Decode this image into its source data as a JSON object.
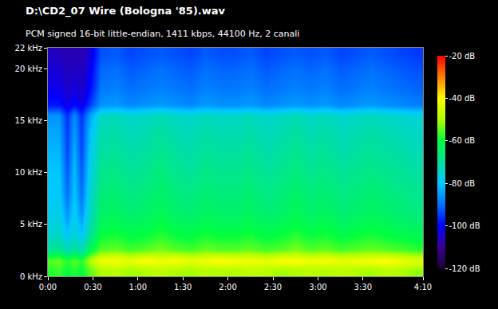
{
  "chart_data": {
    "type": "heatmap",
    "title": "D:\\CD2_07 Wire (Bologna '85).wav",
    "subtitle": "PCM signed 16-bit little-endian, 1411 kbps, 44100 Hz, 2 canali",
    "x": [
      2.5,
      7.5,
      12.5,
      17.5,
      22.5,
      27.5,
      35,
      45,
      55,
      65,
      75,
      85,
      95,
      105,
      115,
      125,
      135,
      145,
      155,
      165,
      175,
      185,
      195,
      205,
      215,
      225,
      235,
      245
    ],
    "y": [
      0.5,
      1.5,
      2.5,
      4,
      6,
      8,
      10,
      12,
      14,
      15.5,
      16.5,
      18,
      20,
      21.5
    ],
    "z": [
      [
        -58,
        -57,
        -60,
        -58,
        -60,
        -55,
        -50,
        -49,
        -51,
        -50,
        -48,
        -50,
        -51,
        -49,
        -50,
        -50,
        -48,
        -49,
        -51,
        -50,
        -49,
        -50,
        -48,
        -50,
        -51,
        -49,
        -50,
        -52
      ],
      [
        -55,
        -54,
        -58,
        -55,
        -58,
        -50,
        -42,
        -41,
        -43,
        -40,
        -42,
        -41,
        -43,
        -42,
        -40,
        -41,
        -42,
        -43,
        -41,
        -40,
        -42,
        -41,
        -43,
        -42,
        -41,
        -40,
        -42,
        -44
      ],
      [
        -68,
        -67,
        -72,
        -68,
        -72,
        -62,
        -55,
        -54,
        -56,
        -55,
        -53,
        -55,
        -56,
        -54,
        -55,
        -55,
        -54,
        -56,
        -55,
        -53,
        -55,
        -54,
        -56,
        -55,
        -54,
        -55,
        -56,
        -57
      ],
      [
        -75,
        -74,
        -80,
        -75,
        -80,
        -70,
        -60,
        -59,
        -61,
        -60,
        -58,
        -60,
        -61,
        -59,
        -60,
        -60,
        -59,
        -61,
        -60,
        -58,
        -60,
        -59,
        -61,
        -60,
        -59,
        -60,
        -61,
        -62
      ],
      [
        -78,
        -77,
        -86,
        -78,
        -86,
        -74,
        -64,
        -63,
        -65,
        -64,
        -62,
        -64,
        -65,
        -63,
        -64,
        -64,
        -63,
        -65,
        -64,
        -62,
        -64,
        -63,
        -65,
        -64,
        -63,
        -64,
        -65,
        -66
      ],
      [
        -80,
        -79,
        -90,
        -80,
        -90,
        -76,
        -66,
        -65,
        -67,
        -66,
        -64,
        -66,
        -67,
        -65,
        -66,
        -66,
        -65,
        -67,
        -66,
        -64,
        -66,
        -65,
        -67,
        -66,
        -65,
        -66,
        -67,
        -68
      ],
      [
        -80,
        -80,
        -92,
        -81,
        -92,
        -78,
        -68,
        -67,
        -69,
        -68,
        -66,
        -68,
        -69,
        -67,
        -68,
        -68,
        -67,
        -69,
        -68,
        -66,
        -68,
        -67,
        -69,
        -68,
        -67,
        -68,
        -69,
        -70
      ],
      [
        -82,
        -82,
        -94,
        -83,
        -94,
        -80,
        -70,
        -69,
        -71,
        -70,
        -68,
        -70,
        -71,
        -69,
        -70,
        -70,
        -69,
        -71,
        -70,
        -68,
        -70,
        -69,
        -71,
        -70,
        -69,
        -70,
        -71,
        -72
      ],
      [
        -84,
        -84,
        -95,
        -85,
        -95,
        -82,
        -72,
        -71,
        -73,
        -72,
        -70,
        -72,
        -73,
        -71,
        -72,
        -72,
        -71,
        -73,
        -72,
        -70,
        -72,
        -71,
        -73,
        -72,
        -71,
        -72,
        -73,
        -74
      ],
      [
        -86,
        -86,
        -96,
        -87,
        -96,
        -85,
        -74,
        -73,
        -75,
        -74,
        -72,
        -74,
        -75,
        -73,
        -74,
        -74,
        -73,
        -75,
        -74,
        -72,
        -74,
        -73,
        -75,
        -74,
        -73,
        -74,
        -75,
        -76
      ],
      [
        -98,
        -98,
        -102,
        -99,
        -102,
        -95,
        -86,
        -85,
        -87,
        -86,
        -85,
        -86,
        -87,
        -85,
        -86,
        -86,
        -85,
        -87,
        -86,
        -85,
        -86,
        -85,
        -87,
        -86,
        -85,
        -86,
        -87,
        -88
      ],
      [
        -102,
        -102,
        -105,
        -103,
        -105,
        -100,
        -89,
        -88,
        -90,
        -89,
        -88,
        -89,
        -90,
        -88,
        -89,
        -89,
        -88,
        -90,
        -89,
        -88,
        -89,
        -88,
        -90,
        -89,
        -88,
        -89,
        -90,
        -91
      ],
      [
        -104,
        -104,
        -106,
        -105,
        -106,
        -102,
        -91,
        -90,
        -92,
        -91,
        -90,
        -91,
        -92,
        -90,
        -91,
        -91,
        -90,
        -92,
        -91,
        -90,
        -91,
        -90,
        -92,
        -91,
        -90,
        -91,
        -92,
        -93
      ],
      [
        -106,
        -106,
        -107,
        -107,
        -107,
        -104,
        -93,
        -92,
        -94,
        -93,
        -92,
        -93,
        -94,
        -92,
        -93,
        -93,
        -92,
        -94,
        -93,
        -92,
        -93,
        -92,
        -94,
        -93,
        -92,
        -93,
        -94,
        -95
      ]
    ],
    "xlim": [
      0,
      250
    ],
    "xticks": [
      {
        "value": 0,
        "label": "0:00"
      },
      {
        "value": 30,
        "label": "0:30"
      },
      {
        "value": 60,
        "label": "1:00"
      },
      {
        "value": 90,
        "label": "1:30"
      },
      {
        "value": 120,
        "label": "2:00"
      },
      {
        "value": 150,
        "label": "2:30"
      },
      {
        "value": 180,
        "label": "3:00"
      },
      {
        "value": 210,
        "label": "3:30"
      },
      {
        "value": 250,
        "label": "4:10"
      }
    ],
    "ylim": [
      0,
      22
    ],
    "yticks": [
      {
        "value": 0,
        "label": "0 kHz"
      },
      {
        "value": 5,
        "label": "5 kHz"
      },
      {
        "value": 10,
        "label": "10 kHz"
      },
      {
        "value": 15,
        "label": "15 kHz"
      },
      {
        "value": 20,
        "label": "20 kHz"
      },
      {
        "value": 22,
        "label": "22 kHz"
      }
    ],
    "colorbar_range": [
      -120,
      -20
    ],
    "colorbar_ticks": [
      {
        "value": -20,
        "label": "-20 dB"
      },
      {
        "value": -40,
        "label": "-40 dB"
      },
      {
        "value": -60,
        "label": "-60 dB"
      },
      {
        "value": -80,
        "label": "-80 dB"
      },
      {
        "value": -100,
        "label": "-100 dB"
      },
      {
        "value": -120,
        "label": "-120 dB"
      }
    ],
    "grid": false
  }
}
